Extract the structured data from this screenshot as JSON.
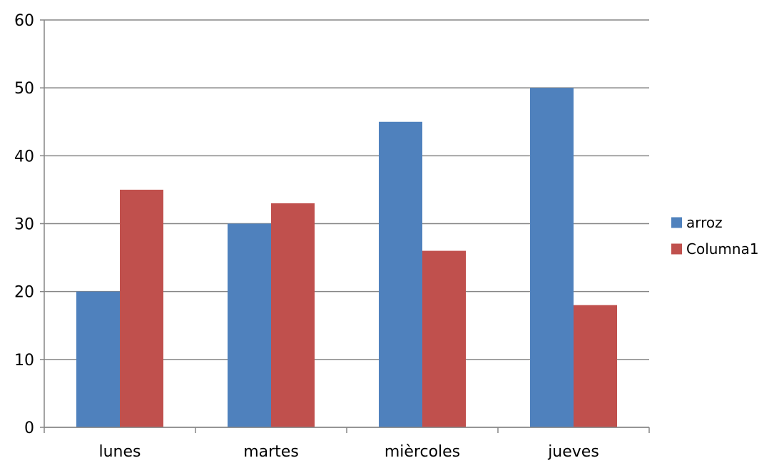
{
  "chart_data": {
    "type": "bar",
    "title": "",
    "xlabel": "",
    "ylabel": "",
    "categories": [
      "lunes",
      "martes",
      "mièrcoles",
      "jueves"
    ],
    "series": [
      {
        "name": "arroz",
        "color": "#4f81bd",
        "values": [
          20,
          30,
          45,
          50
        ]
      },
      {
        "name": "Columna1",
        "color": "#c0504d",
        "values": [
          35,
          33,
          26,
          18
        ]
      }
    ],
    "ylim": [
      0,
      60
    ],
    "yticks": [
      0,
      10,
      20,
      30,
      40,
      50,
      60
    ],
    "grid": true,
    "legend_position": "right"
  }
}
